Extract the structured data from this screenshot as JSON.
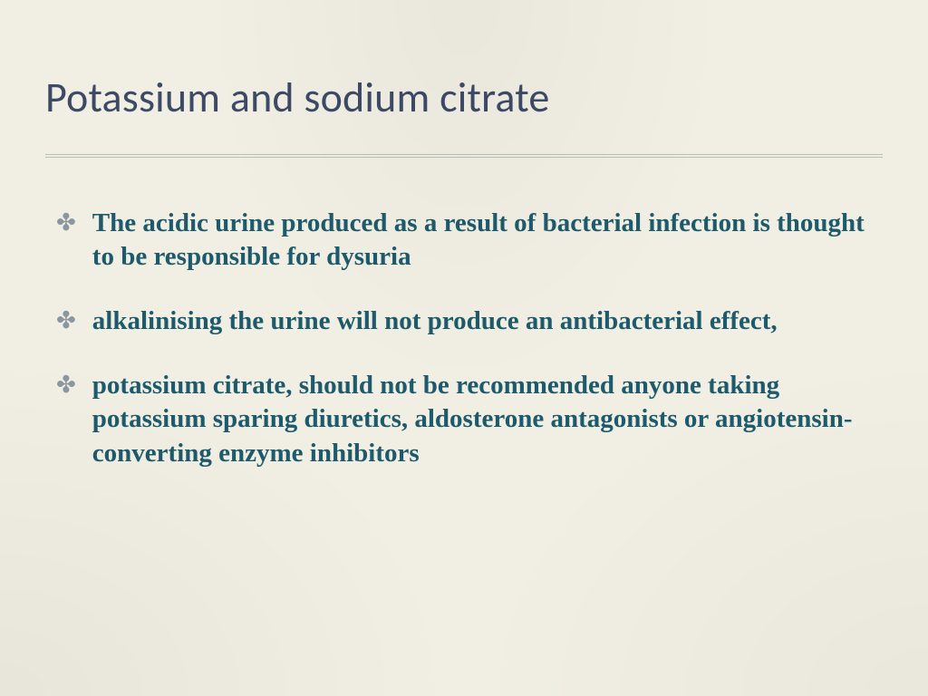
{
  "slide": {
    "title": "Potassium and sodium citrate",
    "title_color": "#3d4a66",
    "title_fontsize": 46,
    "title_fontfamily": "Calibri",
    "background_color": "#f1eee3",
    "divider_color": "#b7c2b7",
    "bullet_glyph": "✤",
    "bullet_glyph_color": "#8a97a0",
    "bullet_text_color": "#1d5a6b",
    "bullet_fontsize": 29,
    "bullet_fontweight": 700,
    "bullet_fontfamily": "Palatino Linotype",
    "bullets": [
      "The acidic urine produced as a result of bacterial infection is thought to be responsible for dysuria",
      "alkalinising the urine will not produce an antibacterial effect,",
      "potassium citrate, should not be recommended anyone taking potassium sparing diuretics, aldosterone antagonists or angiotensin-converting enzyme inhibitors"
    ]
  }
}
